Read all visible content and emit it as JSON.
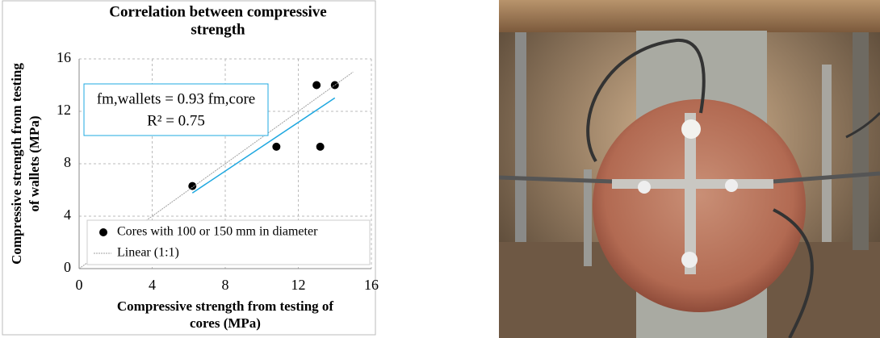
{
  "chart_data": {
    "type": "scatter",
    "title": [
      "Correlation between compressive",
      "strength"
    ],
    "x_label": [
      "Compressive strength from testing of",
      "cores (MPa)"
    ],
    "y_label": [
      "Compressive strength from testing",
      "of wallets (MPa)"
    ],
    "xlim": [
      0,
      16
    ],
    "ylim": [
      0,
      16
    ],
    "xticks": [
      0,
      4,
      8,
      12,
      16
    ],
    "yticks": [
      0,
      4,
      8,
      12,
      16
    ],
    "grid": true,
    "legend": "lower left",
    "series": [
      {
        "name": "Cores with 100 or 150 mm in diameter",
        "color": "#000000",
        "x": [
          6.2,
          10.8,
          13,
          13.2,
          14
        ],
        "values": [
          6.3,
          9.3,
          14,
          9.3,
          14
        ]
      },
      {
        "name": "Linear (1:1)",
        "color": "#a0a0a0",
        "x": [
          0,
          15
        ],
        "values": [
          0,
          15
        ],
        "line": true
      },
      {
        "color": "#1fa8e0",
        "x": [
          6.2,
          14
        ],
        "values": [
          5.77,
          13.02
        ],
        "line": true,
        "trendline": true
      }
    ],
    "annotation": [
      "fm,wallets = 0.93 fm,core",
      "R² = 0.75"
    ]
  }
}
